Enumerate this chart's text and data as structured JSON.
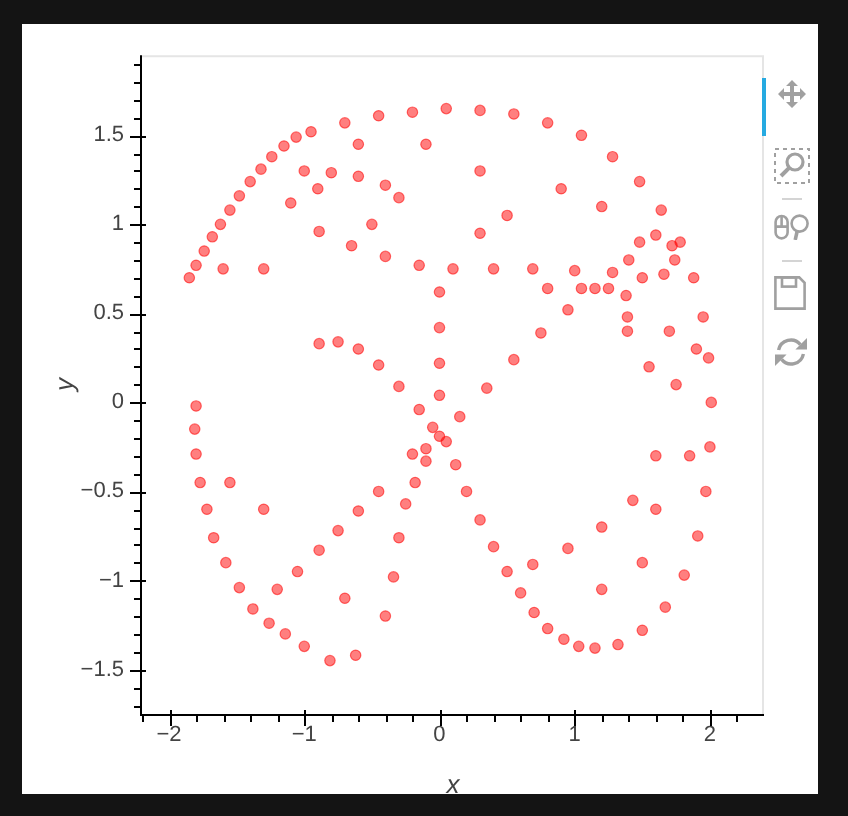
{
  "chart_data": {
    "type": "scatter",
    "xlabel": "x",
    "ylabel": "y",
    "marker": "circle",
    "color": "#ff0000",
    "xlim": [
      -2.2,
      2.4
    ],
    "ylim": [
      -1.75,
      1.95
    ],
    "xticks": [
      {
        "value": -2.2,
        "label": null
      },
      {
        "value": -2,
        "label": "−2"
      },
      {
        "value": -1.8,
        "label": null
      },
      {
        "value": -1.6,
        "label": null
      },
      {
        "value": -1.4,
        "label": null
      },
      {
        "value": -1.2,
        "label": null
      },
      {
        "value": -1,
        "label": "−1"
      },
      {
        "value": -0.8,
        "label": null
      },
      {
        "value": -0.6,
        "label": null
      },
      {
        "value": -0.4,
        "label": null
      },
      {
        "value": -0.2,
        "label": null
      },
      0,
      {
        "value": 0.2,
        "label": null
      },
      {
        "value": 0.4,
        "label": null
      },
      {
        "value": 0.6,
        "label": null
      },
      {
        "value": 0.8,
        "label": null
      },
      1,
      {
        "value": 1.2,
        "label": null
      },
      {
        "value": 1.4,
        "label": null
      },
      {
        "value": 1.6,
        "label": null
      },
      {
        "value": 1.8,
        "label": null
      },
      2,
      {
        "value": 2.2,
        "label": null
      }
    ],
    "yticks": [
      {
        "value": -1.7,
        "label": null
      },
      {
        "value": -1.6,
        "label": null
      },
      {
        "value": -1.5,
        "label": "−1.5"
      },
      {
        "value": -1.4,
        "label": null
      },
      {
        "value": -1.3,
        "label": null
      },
      {
        "value": -1.2,
        "label": null
      },
      {
        "value": -1.1,
        "label": null
      },
      {
        "value": -1,
        "label": "−1"
      },
      {
        "value": -0.9,
        "label": null
      },
      {
        "value": -0.8,
        "label": null
      },
      {
        "value": -0.7,
        "label": null
      },
      {
        "value": -0.6,
        "label": null
      },
      {
        "value": -0.5,
        "label": "−0.5"
      },
      {
        "value": -0.4,
        "label": null
      },
      {
        "value": -0.3,
        "label": null
      },
      {
        "value": -0.2,
        "label": null
      },
      {
        "value": -0.1,
        "label": null
      },
      0,
      {
        "value": 0.1,
        "label": null
      },
      {
        "value": 0.2,
        "label": null
      },
      {
        "value": 0.3,
        "label": null
      },
      {
        "value": 0.4,
        "label": null
      },
      0.5,
      {
        "value": 0.6,
        "label": null
      },
      {
        "value": 0.7,
        "label": null
      },
      {
        "value": 0.8,
        "label": null
      },
      {
        "value": 0.9,
        "label": null
      },
      1,
      {
        "value": 1.1,
        "label": null
      },
      {
        "value": 1.2,
        "label": null
      },
      {
        "value": 1.3,
        "label": null
      },
      {
        "value": 1.4,
        "label": null
      },
      1.5,
      {
        "value": 1.6,
        "label": null
      },
      {
        "value": 1.7,
        "label": null
      },
      {
        "value": 1.8,
        "label": null
      },
      {
        "value": 1.9,
        "label": null
      }
    ],
    "x": [
      -1.85,
      -1.8,
      -1.74,
      -1.68,
      -1.62,
      -1.55,
      -1.48,
      -1.4,
      -1.32,
      -1.24,
      -1.15,
      -1.06,
      -1.0,
      -0.8,
      -0.6,
      -0.4,
      -0.3,
      -1.1,
      -0.89,
      -0.65,
      -0.4,
      -0.15,
      0.1,
      0.4,
      0.69,
      1.0,
      1.28,
      1.4,
      1.48,
      1.6,
      1.72,
      1.74,
      1.66,
      1.5,
      1.38,
      1.39,
      1.39,
      0.8,
      1.05,
      1.25,
      -0.95,
      -0.7,
      -0.45,
      -0.2,
      0.05,
      0.3,
      0.55,
      0.8,
      1.05,
      1.28,
      1.48,
      1.64,
      1.78,
      1.88,
      1.95,
      1.99,
      2.01,
      2.0,
      1.97,
      1.91,
      1.81,
      1.67,
      1.5,
      1.32,
      1.15,
      0.05,
      0.12,
      0.2,
      0.3,
      0.4,
      0.5,
      0.6,
      0.7,
      0.8,
      0.92,
      1.03,
      -0.89,
      -0.75,
      -0.6,
      -0.45,
      -0.3,
      -0.15,
      -0.05,
      0.0,
      0.0,
      0.0,
      0.0,
      0.0,
      0.15,
      0.35,
      0.55,
      0.75,
      0.95,
      1.15,
      -0.2,
      -0.1,
      -1.8,
      -1.81,
      -1.8,
      -1.77,
      -1.72,
      -1.67,
      -1.58,
      -1.48,
      -1.38,
      -1.26,
      -1.14,
      -1.0,
      -0.81,
      -0.1,
      -0.18,
      -0.25,
      -0.3,
      -0.34,
      -0.4,
      -0.62,
      -0.75,
      -0.6,
      -0.45,
      -0.89,
      -1.3,
      -1.05,
      -1.2,
      -0.7,
      -1.55,
      1.43,
      1.2,
      0.95,
      0.69,
      1.6,
      1.2,
      1.5,
      1.75,
      1.6,
      -1.3,
      -0.9,
      -0.6,
      -0.1,
      0.3,
      0.5,
      0.9,
      1.2,
      1.7,
      1.55,
      -0.5,
      0.3,
      -1.6,
      1.85,
      1.9
    ],
    "values": [
      0.7,
      0.77,
      0.85,
      0.93,
      1.0,
      1.08,
      1.16,
      1.24,
      1.31,
      1.38,
      1.44,
      1.49,
      1.3,
      1.29,
      1.27,
      1.22,
      1.15,
      1.12,
      0.96,
      0.88,
      0.82,
      0.77,
      0.75,
      0.75,
      0.75,
      0.74,
      0.73,
      0.8,
      0.9,
      0.94,
      0.88,
      0.8,
      0.72,
      0.7,
      0.6,
      0.48,
      0.4,
      0.64,
      0.64,
      0.64,
      1.52,
      1.57,
      1.61,
      1.63,
      1.65,
      1.64,
      1.62,
      1.57,
      1.5,
      1.38,
      1.24,
      1.08,
      0.9,
      0.7,
      0.48,
      0.25,
      0.0,
      -0.25,
      -0.5,
      -0.75,
      -0.97,
      -1.15,
      -1.28,
      -1.36,
      -1.38,
      -0.22,
      -0.35,
      -0.5,
      -0.66,
      -0.81,
      -0.95,
      -1.07,
      -1.18,
      -1.27,
      -1.33,
      -1.37,
      0.33,
      0.34,
      0.3,
      0.21,
      0.09,
      -0.04,
      -0.14,
      0.62,
      0.42,
      0.22,
      0.04,
      -0.19,
      -0.08,
      0.08,
      0.24,
      0.39,
      0.52,
      0.64,
      -0.29,
      -0.26,
      -0.02,
      -0.15,
      -0.29,
      -0.45,
      -0.6,
      -0.76,
      -0.9,
      -1.04,
      -1.16,
      -1.24,
      -1.3,
      -1.37,
      -1.45,
      -0.33,
      -0.45,
      -0.57,
      -0.76,
      -0.98,
      -1.2,
      -1.42,
      -0.72,
      -0.61,
      -0.5,
      -0.83,
      -0.6,
      -0.95,
      -1.05,
      -1.1,
      -0.45,
      -0.55,
      -0.7,
      -0.82,
      -0.91,
      -0.3,
      -1.05,
      -0.9,
      0.1,
      -0.6,
      0.75,
      1.2,
      1.45,
      1.45,
      1.3,
      1.05,
      1.2,
      1.1,
      0.4,
      0.2,
      1.0,
      0.95,
      0.75,
      -0.3,
      0.3
    ]
  }
}
